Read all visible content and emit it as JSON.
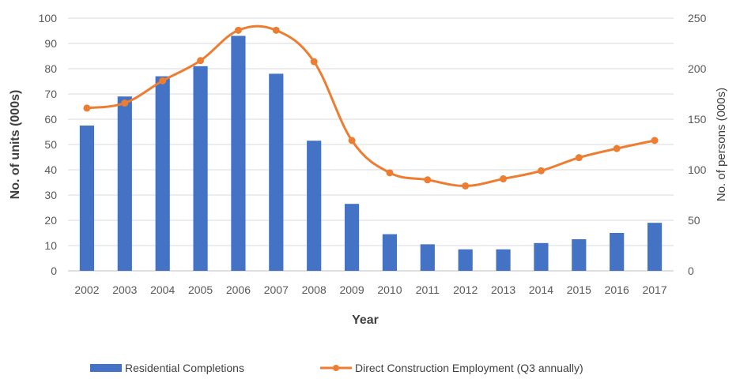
{
  "chart_data": {
    "type": "bar",
    "categories": [
      "2002",
      "2003",
      "2004",
      "2005",
      "2006",
      "2007",
      "2008",
      "2009",
      "2010",
      "2011",
      "2012",
      "2013",
      "2014",
      "2015",
      "2016",
      "2017"
    ],
    "series": [
      {
        "name": "Residential Completions",
        "type": "bar",
        "axis": "left",
        "color": "#4472C4",
        "values": [
          57.5,
          69,
          77,
          81,
          93,
          78,
          51.5,
          26.5,
          14.5,
          10.5,
          8.5,
          8.5,
          11,
          12.5,
          15,
          19
        ]
      },
      {
        "name": "Direct Construction Employment (Q3 annually)",
        "type": "line",
        "axis": "right",
        "color": "#ED7D31",
        "values": [
          161,
          166,
          188,
          208,
          238,
          238,
          207,
          129,
          97,
          90,
          84,
          91,
          99,
          112,
          121,
          129
        ]
      }
    ],
    "xlabel": "Year",
    "ylabel": "No. of units (000s)",
    "y2label": "No. of persons (000s)",
    "ylim": [
      0,
      100
    ],
    "y2lim": [
      0,
      250
    ],
    "yticks": [
      "0",
      "10",
      "20",
      "30",
      "40",
      "50",
      "60",
      "70",
      "80",
      "90",
      "100"
    ],
    "y2ticks": [
      "0",
      "50",
      "100",
      "150",
      "200",
      "250"
    ],
    "grid": true,
    "legend": "bottom"
  }
}
